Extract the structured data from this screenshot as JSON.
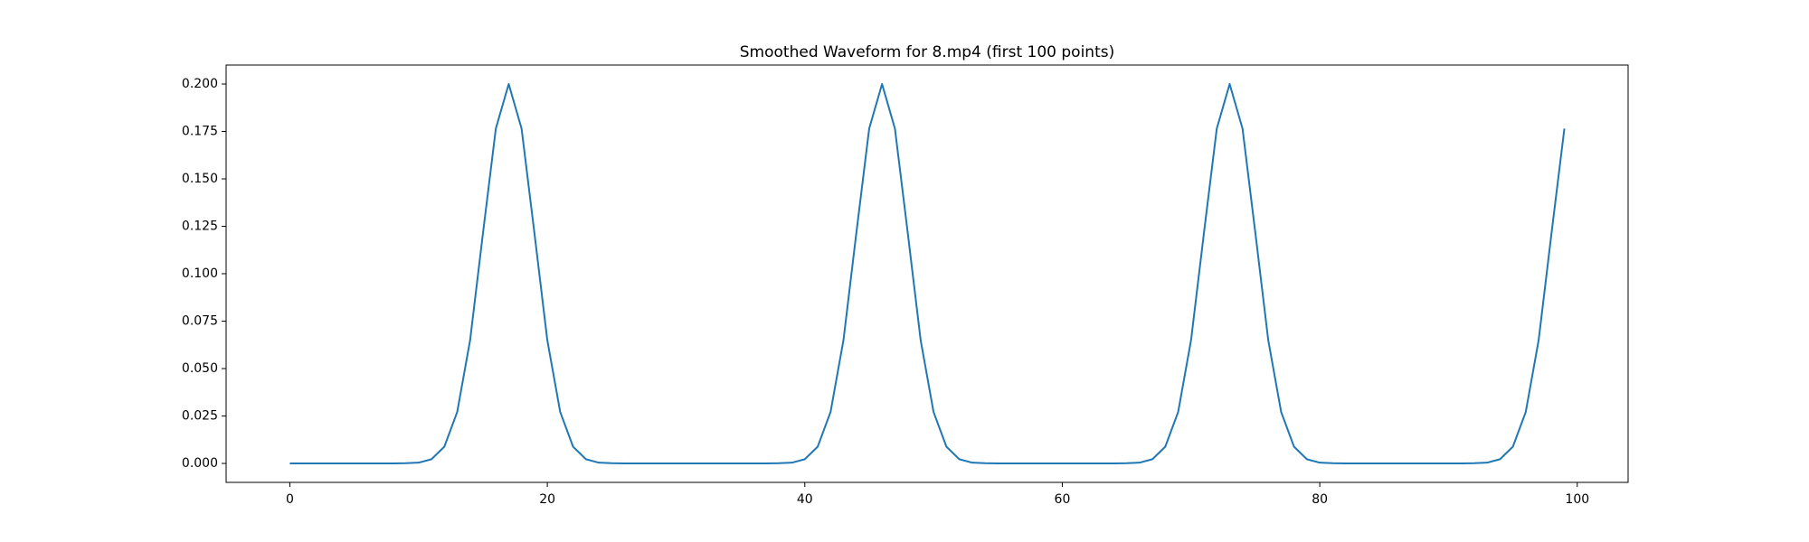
{
  "chart_data": {
    "type": "line",
    "title": "Smoothed Waveform for 8.mp4 (first 100 points)",
    "x": [
      0,
      1,
      2,
      3,
      4,
      5,
      6,
      7,
      8,
      9,
      10,
      11,
      12,
      13,
      14,
      15,
      16,
      17,
      18,
      19,
      20,
      21,
      22,
      23,
      24,
      25,
      26,
      27,
      28,
      29,
      30,
      31,
      32,
      33,
      34,
      35,
      36,
      37,
      38,
      39,
      40,
      41,
      42,
      43,
      44,
      45,
      46,
      47,
      48,
      49,
      50,
      51,
      52,
      53,
      54,
      55,
      56,
      57,
      58,
      59,
      60,
      61,
      62,
      63,
      64,
      65,
      66,
      67,
      68,
      69,
      70,
      71,
      72,
      73,
      74,
      75,
      76,
      77,
      78,
      79,
      80,
      81,
      82,
      83,
      84,
      85,
      86,
      87,
      88,
      89,
      90,
      91,
      92,
      93,
      94,
      95,
      96,
      97,
      98,
      99
    ],
    "series": [
      {
        "color": "#1f77b4",
        "values": [
          0,
          0,
          0,
          0,
          0,
          0,
          0,
          0,
          0,
          0.0001,
          0.0004,
          0.0022,
          0.0088,
          0.0271,
          0.0649,
          0.1213,
          0.1765,
          0.2,
          0.1765,
          0.1213,
          0.0649,
          0.0271,
          0.0088,
          0.0022,
          0.0004,
          0.0001,
          0,
          0,
          0,
          0,
          0,
          0,
          0,
          0,
          0,
          0,
          0,
          0,
          0.0001,
          0.0004,
          0.0022,
          0.0088,
          0.0271,
          0.0649,
          0.1213,
          0.1765,
          0.2,
          0.1765,
          0.1213,
          0.0649,
          0.0271,
          0.0088,
          0.0022,
          0.0004,
          0.0001,
          0,
          0,
          0,
          0,
          0,
          0,
          0,
          0,
          0,
          0,
          0.0001,
          0.0004,
          0.0022,
          0.0088,
          0.0271,
          0.0649,
          0.1213,
          0.1765,
          0.2,
          0.1765,
          0.1213,
          0.0649,
          0.0271,
          0.0088,
          0.0022,
          0.0004,
          0.0001,
          0,
          0,
          0,
          0,
          0,
          0,
          0,
          0,
          0,
          0,
          0.0001,
          0.0004,
          0.0022,
          0.0088,
          0.0271,
          0.0649,
          0.1213,
          0.1765
        ]
      }
    ],
    "xlim": [
      -4.95,
      103.95
    ],
    "xticks": [
      0,
      20,
      40,
      60,
      80,
      100
    ],
    "ylim": [
      -0.01,
      0.21
    ],
    "yticks": [
      {
        "value": 0,
        "label": "0.000"
      },
      {
        "value": 0.025,
        "label": "0.025"
      },
      {
        "value": 0.05,
        "label": "0.050"
      },
      {
        "value": 0.075,
        "label": "0.075"
      },
      {
        "value": 0.1,
        "label": "0.100"
      },
      {
        "value": 0.125,
        "label": "0.125"
      },
      {
        "value": 0.15,
        "label": "0.150"
      },
      {
        "value": 0.175,
        "label": "0.175"
      },
      {
        "value": 0.2,
        "label": "0.200"
      }
    ],
    "grid": false
  }
}
